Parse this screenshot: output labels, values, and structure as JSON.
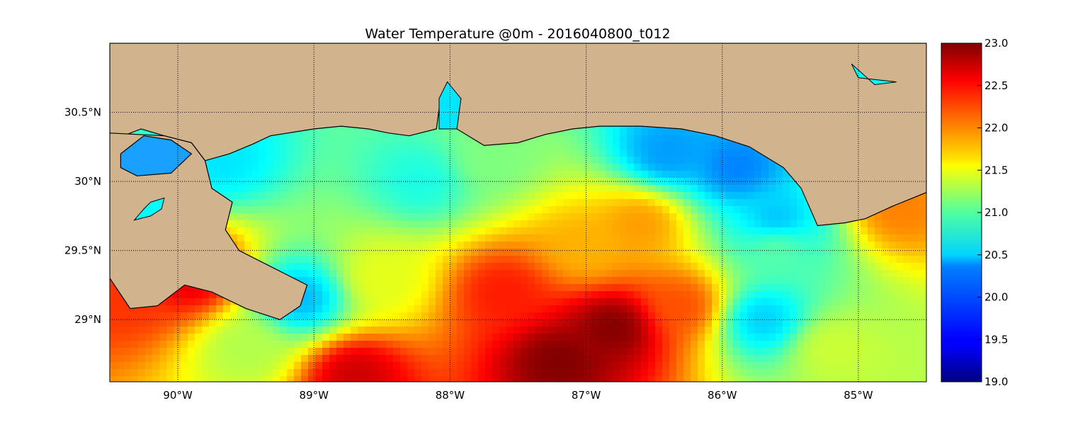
{
  "figure": {
    "title": "Water Temperature @0m - 2016040800_t012"
  },
  "map": {
    "lon_range": [
      -90.5,
      -84.5
    ],
    "lat_range": [
      28.55,
      31.0
    ],
    "lon_ticks": [
      {
        "value": -90,
        "label": "90°W"
      },
      {
        "value": -89,
        "label": "89°W"
      },
      {
        "value": -88,
        "label": "88°W"
      },
      {
        "value": -87,
        "label": "87°W"
      },
      {
        "value": -86,
        "label": "86°W"
      },
      {
        "value": -85,
        "label": "85°W"
      }
    ],
    "lat_ticks": [
      {
        "value": 30.5,
        "label": "30.5°N"
      },
      {
        "value": 30.0,
        "label": "30°N"
      },
      {
        "value": 29.5,
        "label": "29.5°N"
      },
      {
        "value": 29.0,
        "label": "29°N"
      }
    ],
    "grid": true,
    "grid_style": "dotted",
    "land_color": "#d1b38d",
    "coastline_color": "#000000"
  },
  "colorbar": {
    "min": 19.0,
    "max": 23.0,
    "colormap": "jet",
    "ticks": [
      {
        "value": 23.0,
        "label": "23.0"
      },
      {
        "value": 22.5,
        "label": "22.5"
      },
      {
        "value": 22.0,
        "label": "22.0"
      },
      {
        "value": 21.5,
        "label": "21.5"
      },
      {
        "value": 21.0,
        "label": "21.0"
      },
      {
        "value": 20.5,
        "label": "20.5"
      },
      {
        "value": 20.0,
        "label": "20.0"
      },
      {
        "value": 19.5,
        "label": "19.5"
      },
      {
        "value": 19.0,
        "label": "19.0"
      }
    ]
  },
  "temperature_features": [
    {
      "lon": -87.2,
      "lat": 28.7,
      "value": 23.0
    },
    {
      "lon": -86.8,
      "lat": 28.95,
      "value": 23.0
    },
    {
      "lon": -87.6,
      "lat": 29.2,
      "value": 22.4
    },
    {
      "lon": -88.7,
      "lat": 28.6,
      "value": 22.7
    },
    {
      "lon": -86.3,
      "lat": 29.1,
      "value": 22.2
    },
    {
      "lon": -86.6,
      "lat": 29.7,
      "value": 21.9
    },
    {
      "lon": -87.0,
      "lat": 29.5,
      "value": 21.8
    },
    {
      "lon": -85.9,
      "lat": 30.1,
      "value": 20.0
    },
    {
      "lon": -86.4,
      "lat": 30.2,
      "value": 20.1
    },
    {
      "lon": -85.6,
      "lat": 29.7,
      "value": 20.2
    },
    {
      "lon": -85.7,
      "lat": 29.0,
      "value": 20.3
    },
    {
      "lon": -88.2,
      "lat": 30.0,
      "value": 20.6
    },
    {
      "lon": -89.7,
      "lat": 30.15,
      "value": 20.4
    },
    {
      "lon": -89.9,
      "lat": 29.3,
      "value": 22.6
    },
    {
      "lon": -90.4,
      "lat": 29.15,
      "value": 22.3
    },
    {
      "lon": -89.1,
      "lat": 29.15,
      "value": 20.2
    },
    {
      "lon": -89.5,
      "lat": 28.8,
      "value": 21.2
    },
    {
      "lon": -84.7,
      "lat": 29.8,
      "value": 22.0
    },
    {
      "lon": -85.6,
      "lat": 29.55,
      "value": 20.9
    },
    {
      "lon": -88.5,
      "lat": 29.3,
      "value": 21.4
    },
    {
      "lon": -87.7,
      "lat": 30.15,
      "value": 21.0
    },
    {
      "lon": -85.2,
      "lat": 28.8,
      "value": 21.3
    }
  ],
  "background_value": 20.7
}
